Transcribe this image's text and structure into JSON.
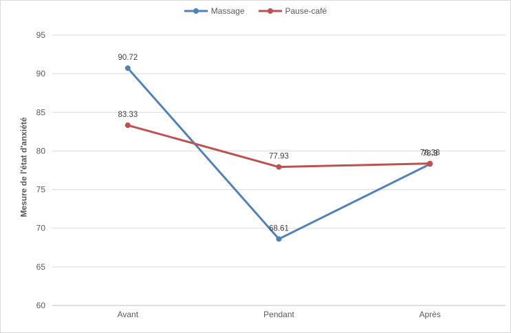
{
  "chart_data": {
    "type": "line",
    "title": "",
    "categories": [
      "Avant",
      "Pendant",
      "Après"
    ],
    "series": [
      {
        "name": "Massage",
        "color": "#4F81BD",
        "values": [
          90.72,
          68.61,
          78.3
        ],
        "point_labels": [
          "90.72",
          "68.61",
          "78.3"
        ]
      },
      {
        "name": "Pause-café",
        "color": "#C0504D",
        "values": [
          83.33,
          77.93,
          78.38
        ],
        "point_labels": [
          "83.33",
          "77.93",
          "78.38"
        ]
      }
    ],
    "xlabel": "",
    "ylabel": "Mesure de l'état d'anxiété",
    "ylim": [
      60,
      95
    ],
    "ytick_step": 5,
    "yticks": [
      60,
      65,
      70,
      75,
      80,
      85,
      90,
      95
    ],
    "grid": true,
    "legend_position": "top",
    "style": {
      "gridline_color": "#d9d9d9",
      "axis_line_color": "#bfbfbf",
      "tick_label_color": "#595959",
      "category_label_color": "#595959",
      "data_label_color": "#404040",
      "background_color": "#ffffff",
      "border_color": "#d9d9d9"
    }
  }
}
